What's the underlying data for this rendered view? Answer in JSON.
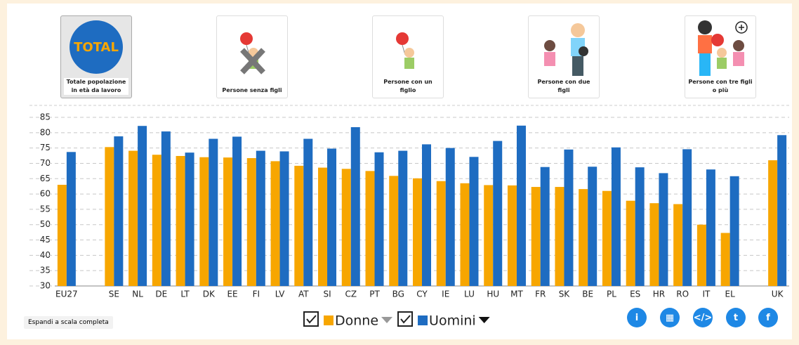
{
  "buttons": [
    {
      "icon": "TOTAL",
      "label": "Totale popolazione in età da lavoro"
    },
    {
      "label": "Persone senza figli"
    },
    {
      "label": "Persone con un figlio"
    },
    {
      "label": "Persone con due figli"
    },
    {
      "label": "Persone con tre figli o più"
    }
  ],
  "controls": {
    "expand": "Espandi a scala completa"
  },
  "chart_data": {
    "type": "bar",
    "categories": [
      "EU27",
      null,
      "SE",
      "NL",
      "DE",
      "LT",
      "DK",
      "EE",
      "FI",
      "LV",
      "AT",
      "SI",
      "CZ",
      "PT",
      "BG",
      "CY",
      "IE",
      "LU",
      "HU",
      "MT",
      "FR",
      "SK",
      "BE",
      "PL",
      "ES",
      "HR",
      "RO",
      "IT",
      "EL",
      null,
      "UK"
    ],
    "series": [
      {
        "name": "Donne",
        "color": "#f7a600",
        "values": [
          63.0,
          null,
          75.3,
          74.1,
          72.8,
          72.4,
          72.0,
          71.9,
          71.7,
          70.7,
          69.2,
          68.6,
          68.2,
          67.5,
          65.9,
          65.1,
          64.2,
          63.5,
          62.9,
          62.8,
          62.3,
          62.3,
          61.6,
          61.0,
          57.8,
          57.0,
          56.7,
          50.0,
          47.3,
          null,
          71.0
        ]
      },
      {
        "name": "Uomini",
        "color": "#1e6cc1",
        "values": [
          73.7,
          null,
          78.8,
          82.2,
          80.4,
          73.5,
          78.0,
          78.7,
          74.1,
          73.9,
          78.0,
          74.8,
          81.8,
          73.6,
          74.1,
          76.2,
          75.0,
          72.1,
          77.3,
          82.3,
          68.8,
          74.5,
          68.9,
          75.2,
          68.7,
          66.8,
          74.6,
          68.0,
          65.8,
          null,
          79.2
        ]
      }
    ],
    "ylim": [
      30,
      85
    ],
    "yticks": [
      30,
      35,
      40,
      45,
      50,
      55,
      60,
      65,
      70,
      75,
      80,
      85
    ],
    "grid": true
  }
}
